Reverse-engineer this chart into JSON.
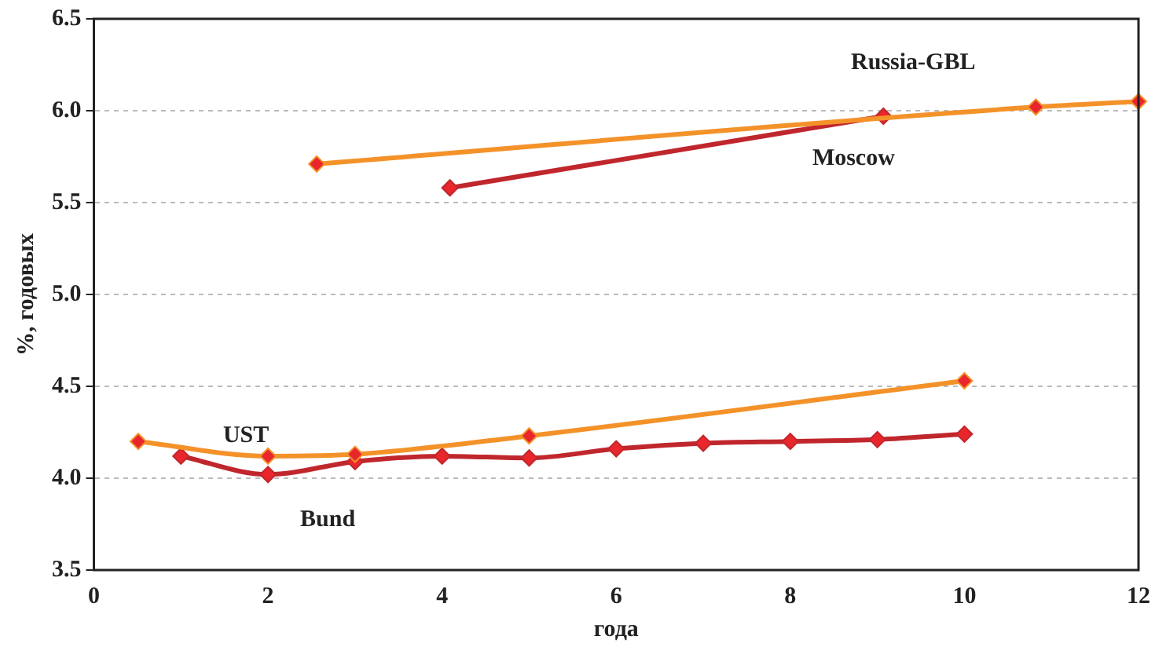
{
  "chart_data": {
    "type": "line",
    "xlabel": "года",
    "ylabel": "%, годовых",
    "xlim": [
      0,
      12
    ],
    "xticks": [
      0,
      2,
      4,
      6,
      8,
      10,
      12
    ],
    "ylim": [
      3.5,
      6.5
    ],
    "yticks": [
      {
        "value": 3.5,
        "label": "3.5"
      },
      {
        "value": 4,
        "label": "4.0"
      },
      {
        "value": 4.5,
        "label": "4.5"
      },
      {
        "value": 5,
        "label": "5.0"
      },
      {
        "value": 5.5,
        "label": "5.5"
      },
      {
        "value": 6,
        "label": "6.0"
      },
      {
        "value": 6.5,
        "label": "6.5"
      }
    ],
    "grid": "y",
    "legend": false,
    "marker": "diamond",
    "line_style": "solid",
    "series": [
      {
        "name": "Russia-GBL",
        "color": "#f4922a",
        "x": [
          2.56,
          10.82,
          12
        ],
        "values": [
          5.71,
          6.02,
          6.05
        ]
      },
      {
        "name": "Moscow",
        "color": "#c0272d",
        "x": [
          4.09,
          9.07
        ],
        "values": [
          5.58,
          5.97
        ]
      },
      {
        "name": "UST",
        "color": "#f4922a",
        "x": [
          0.51,
          2,
          3,
          5,
          10
        ],
        "values": [
          4.2,
          4.12,
          4.13,
          4.23,
          4.53
        ]
      },
      {
        "name": "Bund",
        "color": "#c0272d",
        "x": [
          1,
          2,
          3,
          4,
          5,
          6,
          7,
          8,
          9,
          10
        ],
        "values": [
          4.12,
          4.02,
          4.09,
          4.12,
          4.11,
          4.16,
          4.19,
          4.2,
          4.21,
          4.24
        ]
      }
    ]
  }
}
